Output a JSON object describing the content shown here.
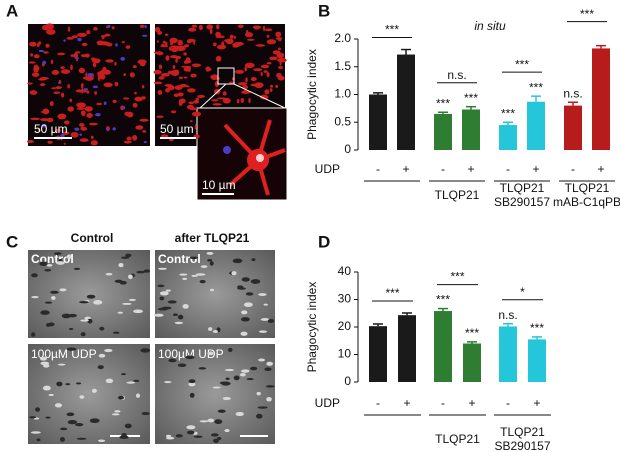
{
  "panel_labels": [
    "A",
    "B",
    "C",
    "D"
  ],
  "panel_a": {
    "scale_bars": [
      "50 µm",
      "50 µm",
      "10 µm"
    ]
  },
  "panel_c": {
    "column_headers": [
      "Control",
      "after TLQP21"
    ],
    "image_labels": [
      "Control",
      "Control",
      "100µM UDP",
      "100µM UDP"
    ]
  },
  "chart_data": [
    {
      "type": "bar",
      "title": "in situ",
      "y_label": "Phagocytic index",
      "row_label": "UDP",
      "categories": [
        "-",
        "+",
        "-",
        "+",
        "-",
        "+",
        "-",
        "+"
      ],
      "values": [
        1.0,
        1.72,
        0.65,
        0.73,
        0.45,
        0.87,
        0.8,
        1.83
      ],
      "errors": [
        0.03,
        0.09,
        0.03,
        0.05,
        0.05,
        0.1,
        0.06,
        0.05
      ],
      "colors": [
        "#1a1a1a",
        "#1a1a1a",
        "#2e7d32",
        "#2e7d32",
        "#26c6da",
        "#26c6da",
        "#b71c1c",
        "#b71c1c"
      ],
      "value_labels": [
        null,
        null,
        "***",
        "***",
        "***",
        "***",
        "n.s.",
        null
      ],
      "groups": [
        null,
        [
          "TLQP21"
        ],
        [
          "TLQP21",
          "SB290157"
        ],
        [
          "TLQP21",
          "mAB-C1qPB"
        ]
      ],
      "group_annotations": [
        "***",
        "n.s.",
        "***",
        "***"
      ],
      "ylim": [
        0,
        2.0
      ],
      "yticks": [
        0,
        0.5,
        {
          "value": 1.0,
          "label": "1.0"
        },
        1.5,
        {
          "value": 2.0,
          "label": "2.0"
        }
      ]
    },
    {
      "type": "bar",
      "y_label": "Phagocytic index",
      "row_label": "UDP",
      "categories": [
        "-",
        "+",
        "-",
        "+",
        "-",
        "+"
      ],
      "values": [
        20.3,
        24.3,
        25.8,
        14.0,
        20.2,
        15.5
      ],
      "errors": [
        0.8,
        0.8,
        0.9,
        0.6,
        1.0,
        0.9
      ],
      "colors": [
        "#1a1a1a",
        "#1a1a1a",
        "#2e7d32",
        "#2e7d32",
        "#26c6da",
        "#26c6da"
      ],
      "value_labels": [
        null,
        null,
        "***",
        "***",
        "n.s.",
        "***"
      ],
      "groups": [
        null,
        [
          "TLQP21"
        ],
        [
          "TLQP21",
          "SB290157"
        ]
      ],
      "group_annotations": [
        "***",
        "***",
        "*"
      ],
      "ylim": [
        0,
        40
      ],
      "yticks": [
        0,
        10,
        20,
        30,
        40
      ]
    }
  ]
}
